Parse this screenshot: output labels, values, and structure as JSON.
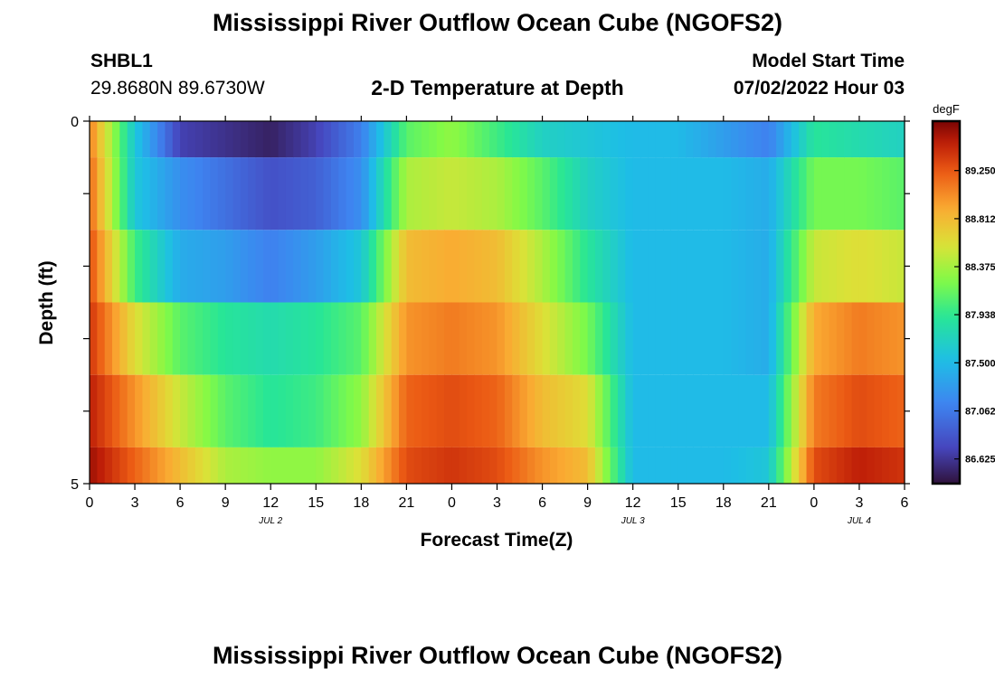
{
  "page": {
    "title": "Mississippi River Outflow Ocean Cube (NGOFS2)",
    "station_id": "SHBL1",
    "station_coords": "29.8680N  89.6730W",
    "model_start_label": "Model Start Time",
    "model_start_value": "07/02/2022 Hour 03",
    "footer_title": "Mississippi River Outflow Ocean Cube (NGOFS2)"
  },
  "chart_data": {
    "type": "heatmap",
    "title": "2-D Temperature at Depth",
    "xlabel": "Forecast Time(Z)",
    "ylabel": "Depth (ft)",
    "x_ticks": [
      "0",
      "3",
      "6",
      "9",
      "12",
      "15",
      "18",
      "21",
      "0",
      "3",
      "6",
      "9",
      "12",
      "15",
      "18",
      "21",
      "0",
      "3",
      "6"
    ],
    "x_hours": [
      0,
      3,
      6,
      9,
      12,
      15,
      18,
      21,
      24,
      27,
      30,
      33,
      36,
      39,
      42,
      45,
      48,
      51,
      54
    ],
    "x_range": [
      0,
      54
    ],
    "date_labels": [
      {
        "label": "JUL 2",
        "hour": 12
      },
      {
        "label": "JUL 3",
        "hour": 36
      },
      {
        "label": "JUL 4",
        "hour": 51
      }
    ],
    "y_ticks": [
      "0",
      "5"
    ],
    "y_range": [
      0,
      5
    ],
    "depth_boundaries_ft": [
      0,
      0.5,
      1.5,
      2.5,
      3.5,
      4.5,
      5
    ],
    "colorbar": {
      "unit": "degF",
      "min": 86.4,
      "max": 89.7,
      "ticks": [
        "89.250",
        "88.812",
        "88.375",
        "87.938",
        "87.500",
        "87.062",
        "86.625"
      ]
    },
    "time_hours": [
      0,
      3,
      6,
      9,
      12,
      15,
      18,
      21,
      24,
      27,
      30,
      33,
      36,
      39,
      42,
      45,
      48,
      51,
      54
    ],
    "layers": [
      {
        "depth_ft": 0,
        "values": [
          89.1,
          87.6,
          86.7,
          86.6,
          86.5,
          86.7,
          87.1,
          88.1,
          88.3,
          88.0,
          87.7,
          87.6,
          87.5,
          87.5,
          87.3,
          87.1,
          87.9,
          87.8,
          87.7
        ]
      },
      {
        "depth_ft": 1,
        "values": [
          89.2,
          87.6,
          87.2,
          87.0,
          86.8,
          86.9,
          87.2,
          88.4,
          88.5,
          88.4,
          88.1,
          87.7,
          87.5,
          87.5,
          87.5,
          87.4,
          88.2,
          88.2,
          88.1
        ]
      },
      {
        "depth_ft": 2,
        "values": [
          89.3,
          88.0,
          87.4,
          87.3,
          87.1,
          87.3,
          87.6,
          88.8,
          88.9,
          88.8,
          88.4,
          87.9,
          87.5,
          87.5,
          87.5,
          87.4,
          88.5,
          88.6,
          88.5
        ]
      },
      {
        "depth_ft": 3,
        "values": [
          89.4,
          88.6,
          88.1,
          87.9,
          87.8,
          87.9,
          88.1,
          89.0,
          89.1,
          89.0,
          88.6,
          88.2,
          87.5,
          87.5,
          87.5,
          87.4,
          88.9,
          89.1,
          89.0
        ]
      },
      {
        "depth_ft": 4,
        "values": [
          89.5,
          89.0,
          88.5,
          88.1,
          87.9,
          88.0,
          88.3,
          89.2,
          89.3,
          89.2,
          88.8,
          88.6,
          87.5,
          87.5,
          87.5,
          87.5,
          89.1,
          89.3,
          89.2
        ]
      },
      {
        "depth_ft": 4.8,
        "values": [
          89.6,
          89.2,
          88.8,
          88.4,
          88.3,
          88.3,
          88.6,
          89.3,
          89.4,
          89.3,
          89.0,
          88.8,
          87.5,
          87.5,
          87.5,
          87.6,
          89.3,
          89.5,
          89.4
        ]
      }
    ]
  }
}
